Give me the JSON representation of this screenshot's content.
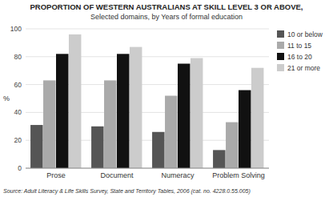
{
  "chart_data": {
    "type": "bar",
    "title": "PROPORTION OF WESTERN AUSTRALIANS AT SKILL LEVEL 3 OR ABOVE,",
    "subtitle": "Selected domains, by Years of formal education",
    "categories": [
      "Prose",
      "Document",
      "Numeracy",
      "Problem Solving"
    ],
    "series": [
      {
        "name": "10 or below",
        "color": "#555555",
        "values": [
          31,
          30,
          26,
          13
        ]
      },
      {
        "name": "11 to 15",
        "color": "#aaaaaa",
        "values": [
          63,
          63,
          52,
          33
        ]
      },
      {
        "name": "16 to 20",
        "color": "#111111",
        "values": [
          82,
          82,
          75,
          56
        ]
      },
      {
        "name": "21 or more",
        "color": "#cccccc",
        "values": [
          96,
          87,
          79,
          72
        ]
      }
    ],
    "ylabel": "%",
    "ylim": [
      0,
      100
    ],
    "yticks": [
      0,
      20,
      40,
      60,
      80,
      100
    ],
    "grid": true,
    "legend": "upper right",
    "annotations": [
      "Source: Adult Literacy & Life Skills Survey,  State and Territory Tables, 2006 (cat. no. 4228.0.55.005)"
    ]
  }
}
